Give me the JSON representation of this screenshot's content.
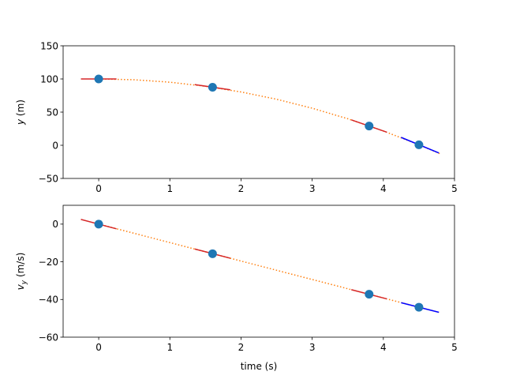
{
  "chart_data": [
    {
      "type": "line",
      "title": "",
      "xlabel": "",
      "ylabel": "y (m)",
      "xlim": [
        -0.5,
        5
      ],
      "ylim": [
        -50,
        150
      ],
      "xticks": [
        0,
        1,
        2,
        3,
        4,
        5
      ],
      "yticks": [
        -50,
        0,
        50,
        100,
        150
      ],
      "grid": false,
      "series": [
        {
          "role": "trajectory",
          "style": "dotted",
          "color": "#ff7f0e",
          "x": [
            0,
            0.5,
            1,
            1.5,
            2,
            2.5,
            3,
            3.5,
            4,
            4.5,
            4.8
          ],
          "y": [
            100,
            98.8,
            95.1,
            89.0,
            80.4,
            69.4,
            55.9,
            40.0,
            21.6,
            0.8,
            -12.9
          ]
        },
        {
          "role": "samples",
          "style": "markers",
          "color": "#1f77b4",
          "x": [
            0,
            1.6,
            3.8,
            4.5
          ],
          "y": [
            100,
            87.5,
            29.0,
            0.8
          ]
        },
        {
          "role": "tangents",
          "style": "solid",
          "color": "#d62728",
          "segments": [
            {
              "x": [
                -0.25,
                0.25
              ],
              "y": [
                100,
                100
              ]
            },
            {
              "x": [
                1.35,
                1.85
              ],
              "y": [
                91.5,
                83.6
              ]
            },
            {
              "x": [
                3.55,
                4.05
              ],
              "y": [
                38.3,
                19.7
              ]
            }
          ]
        },
        {
          "role": "final-tangent",
          "style": "solid",
          "color": "#0000ff",
          "segments": [
            {
              "x": [
                4.25,
                4.78
              ],
              "y": [
                11.9,
                -11.5
              ]
            }
          ]
        }
      ]
    },
    {
      "type": "line",
      "title": "",
      "xlabel": "time (s)",
      "ylabel": "v",
      "ylabel_sub": "y",
      "ylabel_unit": " (m/s)",
      "xlim": [
        -0.5,
        5
      ],
      "ylim": [
        -60,
        10
      ],
      "xticks": [
        0,
        1,
        2,
        3,
        4,
        5
      ],
      "yticks": [
        -60,
        -40,
        -20,
        0
      ],
      "grid": false,
      "series": [
        {
          "role": "trajectory",
          "style": "dotted",
          "color": "#ff7f0e",
          "x": [
            0,
            1,
            2,
            3,
            4,
            4.8
          ],
          "y": [
            0,
            -9.8,
            -19.6,
            -29.4,
            -39.2,
            -47.0
          ]
        },
        {
          "role": "samples",
          "style": "markers",
          "color": "#1f77b4",
          "x": [
            0,
            1.6,
            3.8,
            4.5
          ],
          "y": [
            0,
            -15.7,
            -37.2,
            -44.1
          ]
        },
        {
          "role": "tangents",
          "style": "solid",
          "color": "#d62728",
          "segments": [
            {
              "x": [
                -0.25,
                0.25
              ],
              "y": [
                2.5,
                -2.5
              ]
            },
            {
              "x": [
                1.35,
                1.85
              ],
              "y": [
                -13.2,
                -18.1
              ]
            },
            {
              "x": [
                3.55,
                4.05
              ],
              "y": [
                -34.8,
                -39.7
              ]
            }
          ]
        },
        {
          "role": "final-tangent",
          "style": "solid",
          "color": "#0000ff",
          "segments": [
            {
              "x": [
                4.25,
                4.78
              ],
              "y": [
                -41.7,
                -46.8
              ]
            }
          ]
        }
      ]
    }
  ]
}
